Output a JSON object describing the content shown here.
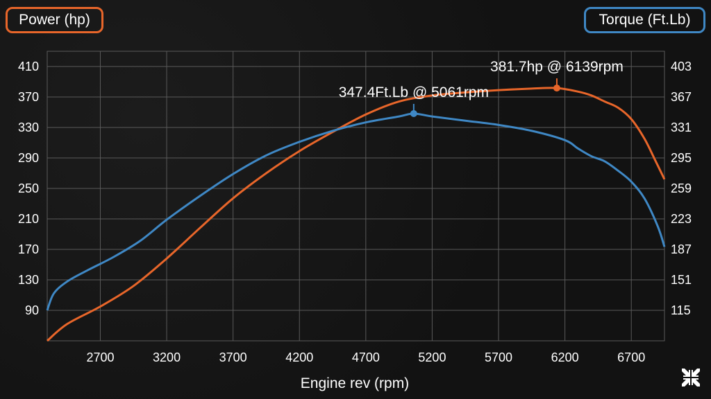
{
  "legend": {
    "power_label": "Power (hp)",
    "torque_label": "Torque (Ft.Lb)"
  },
  "colors": {
    "power": "#e8662a",
    "torque": "#3f88c5",
    "grid": "#5a5a5a"
  },
  "icons": {
    "collapse": "collapse-arrows-icon"
  },
  "chart_data": {
    "type": "line",
    "title": "",
    "xlabel": "Engine rev (rpm)",
    "ylabel_left": "Power (hp)",
    "ylabel_right": "Torque (Ft.Lb)",
    "xlim": [
      2300,
      6950
    ],
    "ylim_left": [
      50,
      430
    ],
    "ylim_right": [
      79,
      421
    ],
    "x_ticks": [
      2700,
      3200,
      3700,
      4200,
      4700,
      5200,
      5700,
      6200,
      6700
    ],
    "y_ticks_left": [
      90,
      130,
      170,
      210,
      250,
      290,
      330,
      370,
      410
    ],
    "y_ticks_right": [
      115,
      151,
      187,
      223,
      259,
      295,
      331,
      367,
      403
    ],
    "grid": true,
    "legend_position": "top corners",
    "series": [
      {
        "name": "Power (hp)",
        "axis": "left",
        "x": [
          2300,
          2450,
          2700,
          2950,
          3200,
          3450,
          3700,
          3950,
          4200,
          4450,
          4700,
          4950,
          5200,
          5450,
          5700,
          5950,
          6139,
          6300,
          6400,
          6500,
          6600,
          6700,
          6800,
          6880,
          6950
        ],
        "y": [
          50,
          72,
          95,
          122,
          158,
          198,
          237,
          270,
          299,
          324,
          347,
          364,
          372,
          376,
          379,
          381,
          381.7,
          377,
          372,
          364,
          356,
          341,
          315,
          287,
          262
        ]
      },
      {
        "name": "Torque (Ft.Lb)",
        "axis": "right",
        "x": [
          2300,
          2350,
          2450,
          2600,
          2800,
          3000,
          3200,
          3450,
          3700,
          3950,
          4200,
          4450,
          4700,
          4950,
          5061,
          5200,
          5450,
          5700,
          5950,
          6200,
          6300,
          6400,
          6500,
          6600,
          6700,
          6800,
          6900,
          6950
        ],
        "y": [
          115,
          135,
          149,
          162,
          178,
          197,
          222,
          250,
          276,
          298,
          314,
          327,
          337,
          344,
          347.4,
          344,
          339,
          334,
          327,
          316,
          306,
          297,
          291,
          280,
          267,
          247,
          214,
          190
        ]
      }
    ],
    "annotations": [
      {
        "label": "381.7hp @ 6139rpm",
        "series": "Power (hp)",
        "x": 6139,
        "y": 381.7
      },
      {
        "label": "347.4Ft.Lb @ 5061rpm",
        "series": "Torque (Ft.Lb)",
        "x": 5061,
        "y": 347.4
      }
    ]
  }
}
